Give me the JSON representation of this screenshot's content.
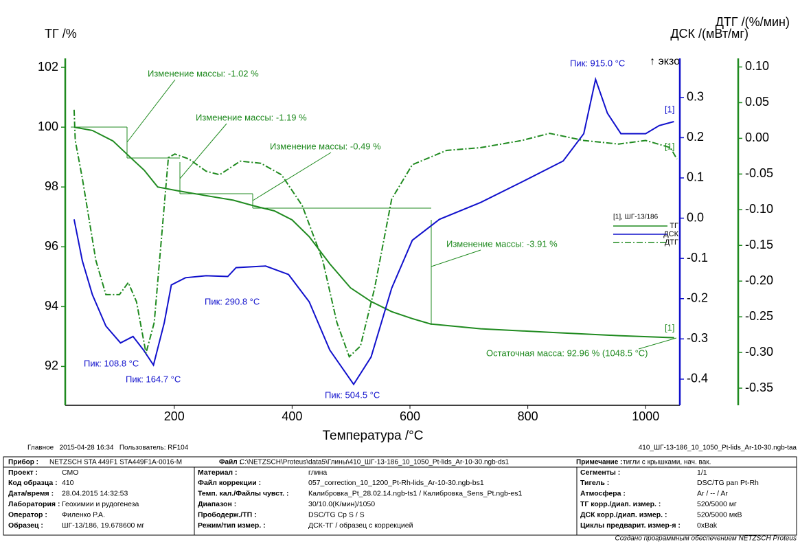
{
  "chart_data": {
    "type": "line",
    "y_title": "ТГ /%",
    "y2_title": "ДСК /(мВт/мг)",
    "y3_title": "ДТГ /(%/мин)",
    "exo_label": "↑ экзо",
    "x_title": "Температура /°C",
    "xlim": [
      15,
      1058
    ],
    "xticks": [
      200,
      400,
      600,
      800,
      1000
    ],
    "ylim": [
      90.7,
      102.3
    ],
    "yticks": [
      92,
      94,
      96,
      98,
      100,
      102
    ],
    "y2lim": [
      -0.465,
      0.397
    ],
    "y2ticks": [
      -0.4,
      -0.3,
      -0.2,
      -0.1,
      {
        "value": 0,
        "label": "0.0"
      },
      0.1,
      0.2,
      0.3
    ],
    "y3lim": [
      -0.374,
      0.112
    ],
    "y3ticks": [
      -0.35,
      {
        "value": -0.3,
        "label": "-0.30"
      },
      -0.25,
      {
        "value": -0.2,
        "label": "-0.20"
      },
      -0.15,
      {
        "value": -0.1,
        "label": "-0.10"
      },
      -0.05,
      {
        "value": 0,
        "label": "0.00"
      },
      0.05,
      {
        "value": 0.1,
        "label": "0.10"
      }
    ],
    "legend_title": "[1], ШГ-13/186",
    "series": [
      {
        "name": "ТГ",
        "color": "#1f8a1f",
        "axis": "y",
        "style": "solid",
        "x": [
          30,
          61,
          96,
          125,
          149,
          172,
          207,
          254,
          300,
          335,
          370,
          400,
          429,
          464,
          499,
          534,
          569,
          604,
          635,
          720,
          837,
          954,
          1048.5
        ],
        "values": [
          100.0,
          99.89,
          99.54,
          99.0,
          98.56,
          98.0,
          97.87,
          97.71,
          97.56,
          97.37,
          97.2,
          96.9,
          96.34,
          95.43,
          94.63,
          94.17,
          93.83,
          93.6,
          93.42,
          93.26,
          93.14,
          93.03,
          92.96
        ]
      },
      {
        "name": "ДСК",
        "color": "#1010cc",
        "axis": "y2",
        "style": "solid",
        "x": [
          30,
          44,
          61,
          84,
          108.8,
          130,
          148,
          164.7,
          183,
          195,
          219,
          254,
          290.8,
          305,
          355,
          394,
          429,
          464,
          504.5,
          534,
          569,
          604,
          650,
          720,
          790,
          860,
          895,
          915,
          935,
          958,
          1000,
          1023,
          1048
        ],
        "values": [
          -0.003,
          -0.106,
          -0.19,
          -0.268,
          -0.31,
          -0.294,
          -0.328,
          -0.365,
          -0.26,
          -0.166,
          -0.148,
          -0.143,
          -0.145,
          -0.123,
          -0.119,
          -0.14,
          -0.208,
          -0.328,
          -0.413,
          -0.345,
          -0.174,
          -0.055,
          -0.003,
          0.039,
          0.09,
          0.142,
          0.21,
          0.345,
          0.261,
          0.21,
          0.21,
          0.23,
          0.24
        ]
      },
      {
        "name": "ДТГ",
        "color": "#1f8a1f",
        "axis": "y3",
        "style": "dashdot",
        "x": [
          30,
          32,
          44,
          67,
          84,
          107,
          122,
          136,
          152,
          166,
          190,
          201,
          225,
          254,
          277,
          312,
          347,
          382,
          417,
          452,
          476,
          497,
          516,
          540,
          569,
          604,
          662,
          720,
          790,
          837,
          895,
          954,
          1000,
          1042,
          1053
        ],
        "values": [
          0.04,
          -0.003,
          -0.056,
          -0.171,
          -0.219,
          -0.219,
          -0.202,
          -0.229,
          -0.301,
          -0.258,
          -0.027,
          -0.022,
          -0.029,
          -0.046,
          -0.051,
          -0.032,
          -0.035,
          -0.051,
          -0.094,
          -0.171,
          -0.258,
          -0.306,
          -0.291,
          -0.21,
          -0.085,
          -0.037,
          -0.017,
          -0.013,
          -0.003,
          0.007,
          -0.003,
          -0.008,
          -0.003,
          -0.013,
          -0.029
        ]
      }
    ],
    "annotations": [
      "Изменение массы: -1.02 %",
      "Изменение массы: -1.19 %",
      "Изменение массы: -0.49 %",
      "Изменение массы: -3.91 %",
      "Остаточная масса: 92.96 % (1048.5 °C)",
      "Пик: 915.0 °C",
      "Пик: 290.8 °C",
      "Пик: 108.8 °C",
      "Пик: 164.7 °C",
      "Пик: 504.5 °C",
      "[1]",
      "[1]",
      "[1]"
    ]
  },
  "footer": {
    "left": "Главное   2015-04-28 16:34   Пользователь: RF104",
    "right": "410_ШГ-13-186_10_1050_Pt-lids_Ar-10-30.ngb-taa",
    "credit": "Создано программным обеспечением NETZSCH Proteus"
  },
  "info": {
    "row0": [
      {
        "label": "Прибор :",
        "value": "NETZSCH STA 449F1 STA449F1A-0016-M"
      },
      {
        "label": "Файл :",
        "value": "C:\\NETZSCH\\Proteus\\data5\\Глины\\410_ШГ-13-186_10_1050_Pt-lids_Ar-10-30.ngb-ds1"
      },
      {
        "label": "Примечание :",
        "value": "тигли с крышками, нач. вак."
      }
    ],
    "columns": [
      [
        {
          "label": "Проект :",
          "value": "СМО"
        },
        {
          "label": "Код образца :",
          "value": "410"
        },
        {
          "label": "Дата/время :",
          "value": "28.04.2015 14:32:53"
        },
        {
          "label": "Лаборатория :",
          "value": "Геохимии и рудогенеза"
        },
        {
          "label": "Оператор :",
          "value": "Филенко Р.А."
        },
        {
          "label": "Образец :",
          "value": "ШГ-13/186, 19.678600 мг"
        }
      ],
      [
        {
          "label": "Материал :",
          "value": "глина"
        },
        {
          "label": "Файл коррекции :",
          "value": "057_correction_10_1200_Pt-Rh-lids_Ar-10-30.ngb-bs1"
        },
        {
          "label": "Темп. кал./Файлы чувст. :",
          "value": "Калибровка_Pt_28.02.14.ngb-ts1 / Калибровка_Sens_Pt.ngb-es1"
        },
        {
          "label": "Диапазон :",
          "value": "30/10.0(K/мин)/1050"
        },
        {
          "label": "Прободерж./ТП :",
          "value": "DSC/TG Cp S / S"
        },
        {
          "label": "Режим/тип измер. :",
          "value": "ДСК-ТГ / образец с коррекцией"
        }
      ],
      [
        {
          "label": "Сегменты :",
          "value": "1/1"
        },
        {
          "label": "Тигель :",
          "value": "DSC/TG pan Pt-Rh"
        },
        {
          "label": "Атмосфера :",
          "value": "Ar / -- / Ar"
        },
        {
          "label": "ТГ корр./диап. измер. :",
          "value": "520/5000 мг"
        },
        {
          "label": "ДСК корр./диап. измер. :",
          "value": "520/5000 мкВ"
        },
        {
          "label": "Циклы предварит. измер-я :",
          "value": "0xBak"
        }
      ]
    ]
  }
}
